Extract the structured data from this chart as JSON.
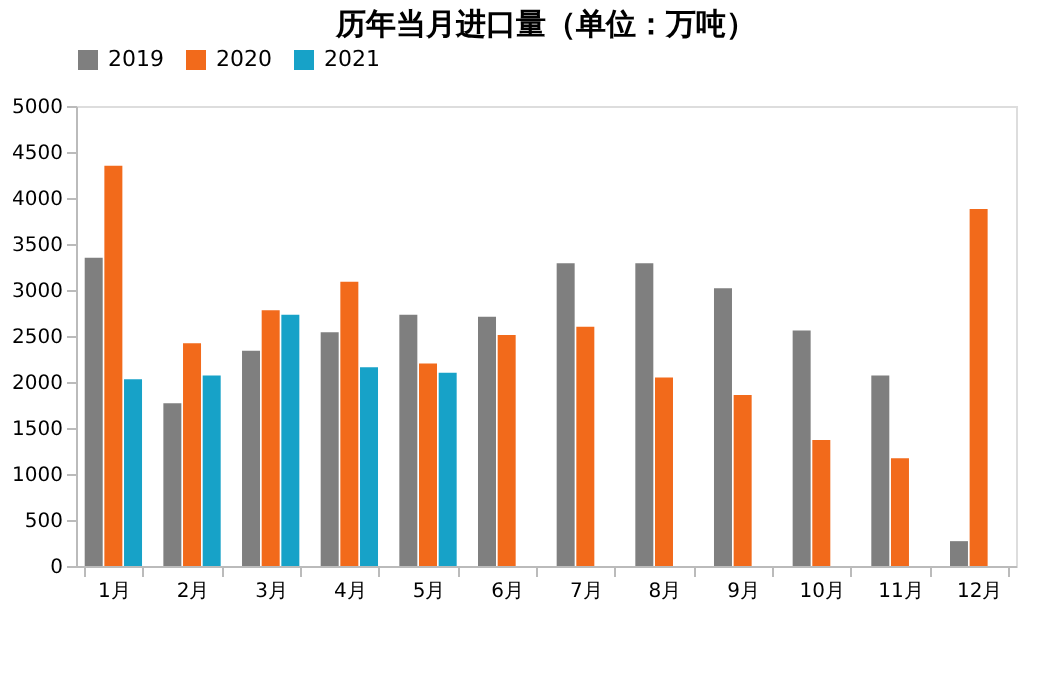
{
  "chart_data": {
    "type": "bar",
    "title": "历年当月进口量（单位：万吨）",
    "categories": [
      "1月",
      "2月",
      "3月",
      "4月",
      "5月",
      "6月",
      "7月",
      "8月",
      "9月",
      "10月",
      "11月",
      "12月"
    ],
    "series": [
      {
        "name": "2019",
        "color": "#7f7f7f",
        "values": [
          3350,
          1770,
          2340,
          2540,
          2730,
          2710,
          3290,
          3290,
          3020,
          2560,
          2070,
          270
        ]
      },
      {
        "name": "2020",
        "color": "#f26a1b",
        "values": [
          4350,
          2420,
          2780,
          3090,
          2200,
          2510,
          2600,
          2050,
          1860,
          1370,
          1170,
          3880
        ]
      },
      {
        "name": "2021",
        "color": "#17a2c8",
        "values": [
          2030,
          2070,
          2730,
          2160,
          2100,
          null,
          null,
          null,
          null,
          null,
          null,
          null
        ]
      }
    ],
    "ylim": [
      0,
      5000
    ],
    "yticks": [
      0,
      500,
      1000,
      1500,
      2000,
      2500,
      3000,
      3500,
      4000,
      4500,
      5000
    ],
    "grid": false,
    "legend": "top"
  }
}
